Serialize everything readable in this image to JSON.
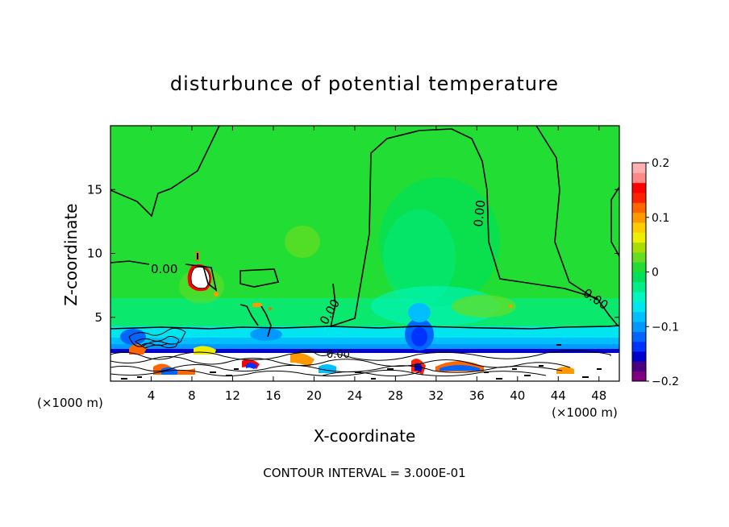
{
  "chart_data": {
    "type": "heatmap",
    "title": "disturbunce of potential temperature",
    "xlabel": "X-coordinate",
    "ylabel": "Z-coordinate",
    "x_unit_left": "(×1000 m)",
    "x_unit_right": "(×1000 m)",
    "xlim": [
      0,
      50
    ],
    "ylim": [
      0,
      20
    ],
    "x_ticks": [
      4,
      8,
      12,
      16,
      20,
      24,
      28,
      32,
      36,
      40,
      44,
      48
    ],
    "y_ticks": [
      5,
      10,
      15
    ],
    "colorbar": {
      "ticks": [
        "0.2",
        "0.1",
        "0",
        "−0.1",
        "−0.2"
      ],
      "tick_values": [
        0.2,
        0.1,
        0,
        -0.1,
        -0.2
      ],
      "range": [
        -0.2,
        0.2
      ],
      "colors": [
        "#800080",
        "#4b0082",
        "#0000cd",
        "#0033ff",
        "#0066ff",
        "#0099ff",
        "#00bfff",
        "#00e5ee",
        "#00f5c0",
        "#00ee88",
        "#00e05a",
        "#22dd33",
        "#66dd22",
        "#aadd00",
        "#eeee00",
        "#ffcc00",
        "#ff9900",
        "#ff6600",
        "#ff2200",
        "#ff0000",
        "#ff8888",
        "#ffb0b0"
      ]
    },
    "contour_labels": [
      "0.00",
      "0.00",
      "0.00",
      "0.00",
      "0.00"
    ],
    "contour_interval_text": "CONTOUR INTERVAL = 3.000E-01",
    "background_color": "#22dd33",
    "grid": false
  }
}
